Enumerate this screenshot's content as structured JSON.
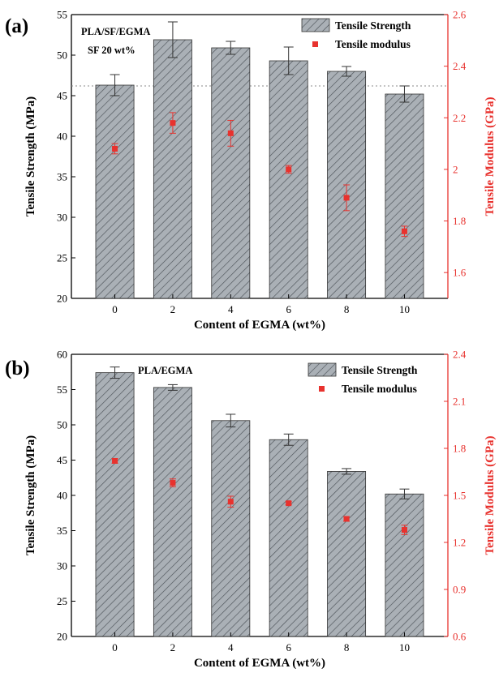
{
  "chart_data": [
    {
      "type": "bar",
      "panel_label": "(a)",
      "annotations": [
        "PLA/SF/EGMA",
        "SF 20 wt%"
      ],
      "categories": [
        "0",
        "2",
        "4",
        "6",
        "8",
        "10"
      ],
      "xlabel": "Content of EGMA (wt%)",
      "ylabel": "Tensile Strength (MPa)",
      "y2label": "Tensile Modulus (GPa)",
      "ylim": [
        20,
        55
      ],
      "yticks": [
        20,
        25,
        30,
        35,
        40,
        45,
        50,
        55
      ],
      "y2lim": [
        1.5,
        2.6
      ],
      "y2ticks": [
        1.6,
        1.8,
        2.0,
        2.2,
        2.4,
        2.6
      ],
      "reference_line": 46.2,
      "legend_position": "top-right",
      "colors": {
        "bar_fill": "#aab0b6",
        "bar_hatch": "#4d5359",
        "modulus": "#e8322e",
        "right_axis": "#e8322e",
        "reference_line": "#888888"
      },
      "series": [
        {
          "name": "Tensile Strength",
          "axis": "left",
          "values": [
            46.3,
            51.9,
            50.9,
            49.3,
            48.0,
            45.2
          ],
          "errors": [
            1.3,
            2.2,
            0.8,
            1.7,
            0.6,
            1.0
          ]
        },
        {
          "name": "Tensile modulus",
          "axis": "right",
          "values": [
            2.08,
            2.18,
            2.14,
            2.0,
            1.89,
            1.76
          ],
          "errors": [
            0.02,
            0.04,
            0.05,
            0.015,
            0.05,
            0.02
          ]
        }
      ]
    },
    {
      "type": "bar",
      "panel_label": "(b)",
      "annotations": [
        "PLA/EGMA"
      ],
      "categories": [
        "0",
        "2",
        "4",
        "6",
        "8",
        "10"
      ],
      "xlabel": "Content of EGMA (wt%)",
      "ylabel": "Tensile Strength (MPa)",
      "y2label": "Tensile Modulus (GPa)",
      "ylim": [
        20,
        60
      ],
      "yticks": [
        20,
        25,
        30,
        35,
        40,
        45,
        50,
        55,
        60
      ],
      "y2lim": [
        0.6,
        2.4
      ],
      "y2ticks": [
        "0.6",
        "0.9",
        "1.2",
        "1.5",
        "1.8",
        "2.1",
        "2.4"
      ],
      "legend_position": "top-right",
      "colors": {
        "bar_fill": "#aab0b6",
        "bar_hatch": "#4d5359",
        "modulus": "#e8322e",
        "right_axis": "#e8322e"
      },
      "series": [
        {
          "name": "Tensile Strength",
          "axis": "left",
          "values": [
            57.4,
            55.3,
            50.6,
            47.9,
            43.4,
            40.2
          ],
          "errors": [
            0.8,
            0.4,
            0.9,
            0.8,
            0.4,
            0.7
          ]
        },
        {
          "name": "Tensile modulus",
          "axis": "right",
          "values": [
            1.72,
            1.58,
            1.46,
            1.45,
            1.35,
            1.28
          ],
          "errors": [
            0.015,
            0.025,
            0.035,
            0.01,
            0.015,
            0.03
          ]
        }
      ]
    }
  ]
}
